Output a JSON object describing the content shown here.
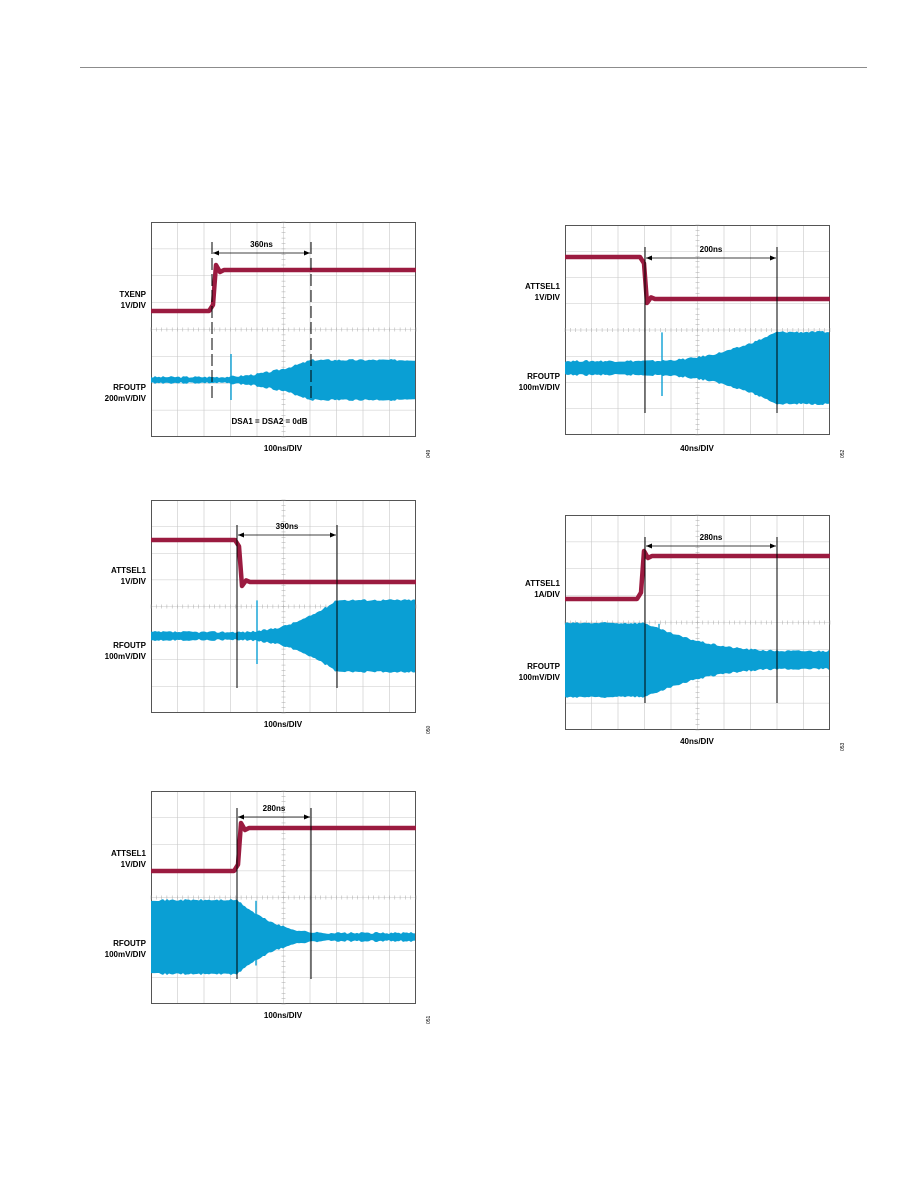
{
  "colors": {
    "control_trace": "#9b1b40",
    "rf_trace": "#0a9fd4",
    "grid": "#c8c8c8",
    "frame": "#555555"
  },
  "plots": [
    {
      "id": "fig-049",
      "time_label": "360ns",
      "ch1_label": [
        "TXENP",
        "1V/DIV"
      ],
      "ch2_label": [
        "RFOUTP",
        "200mV/DIV"
      ],
      "x_label": "100ns/DIV",
      "note": "DSA1 = DSA2 = 0dB",
      "fig_code": "049",
      "control_direction": "rise",
      "rf_direction": "grow"
    },
    {
      "id": "fig-052",
      "time_label": "200ns",
      "ch1_label": [
        "ATTSEL1",
        "1V/DIV"
      ],
      "ch2_label": [
        "RFOUTP",
        "100mV/DIV"
      ],
      "x_label": "40ns/DIV",
      "note": "",
      "fig_code": "052",
      "control_direction": "fall",
      "rf_direction": "grow"
    },
    {
      "id": "fig-050",
      "time_label": "390ns",
      "ch1_label": [
        "ATTSEL1",
        "1V/DIV"
      ],
      "ch2_label": [
        "RFOUTP",
        "100mV/DIV"
      ],
      "x_label": "100ns/DIV",
      "note": "",
      "fig_code": "050",
      "control_direction": "fall",
      "rf_direction": "grow"
    },
    {
      "id": "fig-053",
      "time_label": "280ns",
      "ch1_label": [
        "ATTSEL1",
        "1A/DIV"
      ],
      "ch2_label": [
        "RFOUTP",
        "100mV/DIV"
      ],
      "x_label": "40ns/DIV",
      "note": "",
      "fig_code": "053",
      "control_direction": "rise",
      "rf_direction": "shrink"
    },
    {
      "id": "fig-051",
      "time_label": "280ns",
      "ch1_label": [
        "ATTSEL1",
        "1V/DIV"
      ],
      "ch2_label": [
        "RFOUTP",
        "100mV/DIV"
      ],
      "x_label": "100ns/DIV",
      "note": "",
      "fig_code": "051",
      "control_direction": "rise",
      "rf_direction": "shrink"
    }
  ]
}
